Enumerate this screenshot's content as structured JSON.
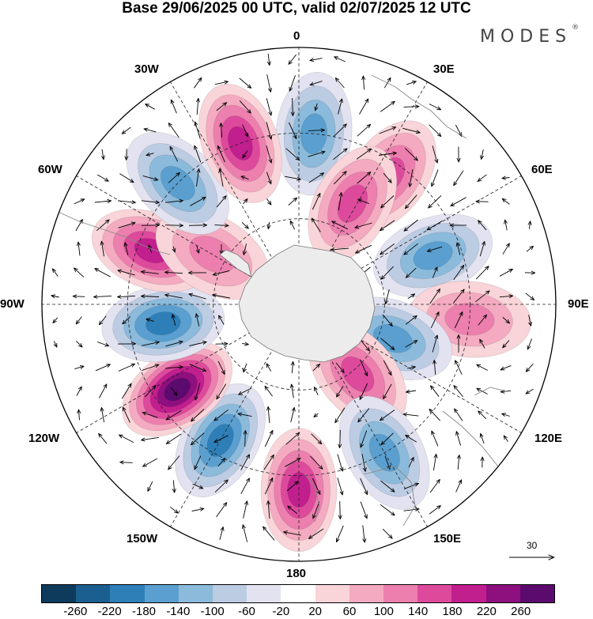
{
  "title": "Base 29/06/2025 00 UTC, valid 02/07/2025 12 UTC",
  "logo": {
    "text": "MODES",
    "mark": "®"
  },
  "longitude_labels": {
    "top": "0",
    "bottom": "180",
    "left": "90W",
    "right": "90E",
    "nw": "30W",
    "ne": "30E",
    "wnw": "60W",
    "ene": "60E",
    "wsw": "120W",
    "ese": "120E",
    "sw": "150W",
    "se": "150E"
  },
  "vector_scale": {
    "label": "30"
  },
  "colorbar": {
    "colors": [
      "#0e3a5c",
      "#1a5f8f",
      "#2e7fb8",
      "#5a9fcf",
      "#8bbadb",
      "#bccce3",
      "#e2e2f0",
      "#ffffff",
      "#f9d4d8",
      "#f4aac0",
      "#ec7fae",
      "#dd4a9c",
      "#c11e8e",
      "#8e0f7e",
      "#5b0a6e"
    ],
    "tick_labels": [
      "-260",
      "-220",
      "-180",
      "-140",
      "-100",
      "-60",
      "-20",
      "20",
      "60",
      "100",
      "140",
      "180",
      "220",
      "260"
    ]
  },
  "anomaly_centers": [
    {
      "lon": 5,
      "lat": -30,
      "value": -170
    },
    {
      "lon": 35,
      "lat": -35,
      "value": 150
    },
    {
      "lon": 28,
      "lat": -50,
      "value": 140
    },
    {
      "lon": 70,
      "lat": -40,
      "value": -150
    },
    {
      "lon": 95,
      "lat": -30,
      "value": 110
    },
    {
      "lon": 110,
      "lat": -55,
      "value": -150
    },
    {
      "lon": 140,
      "lat": -58,
      "value": 150
    },
    {
      "lon": 150,
      "lat": -30,
      "value": -160
    },
    {
      "lon": 180,
      "lat": -25,
      "value": 200
    },
    {
      "lon": 210,
      "lat": -35,
      "value": -180
    },
    {
      "lon": 235,
      "lat": -38,
      "value": 260
    },
    {
      "lon": 262,
      "lat": -42,
      "value": -210
    },
    {
      "lon": 290,
      "lat": -35,
      "value": 190
    },
    {
      "lon": 300,
      "lat": -55,
      "value": 100
    },
    {
      "lon": 315,
      "lat": -30,
      "value": -160
    },
    {
      "lon": 340,
      "lat": -30,
      "value": 180
    }
  ]
}
